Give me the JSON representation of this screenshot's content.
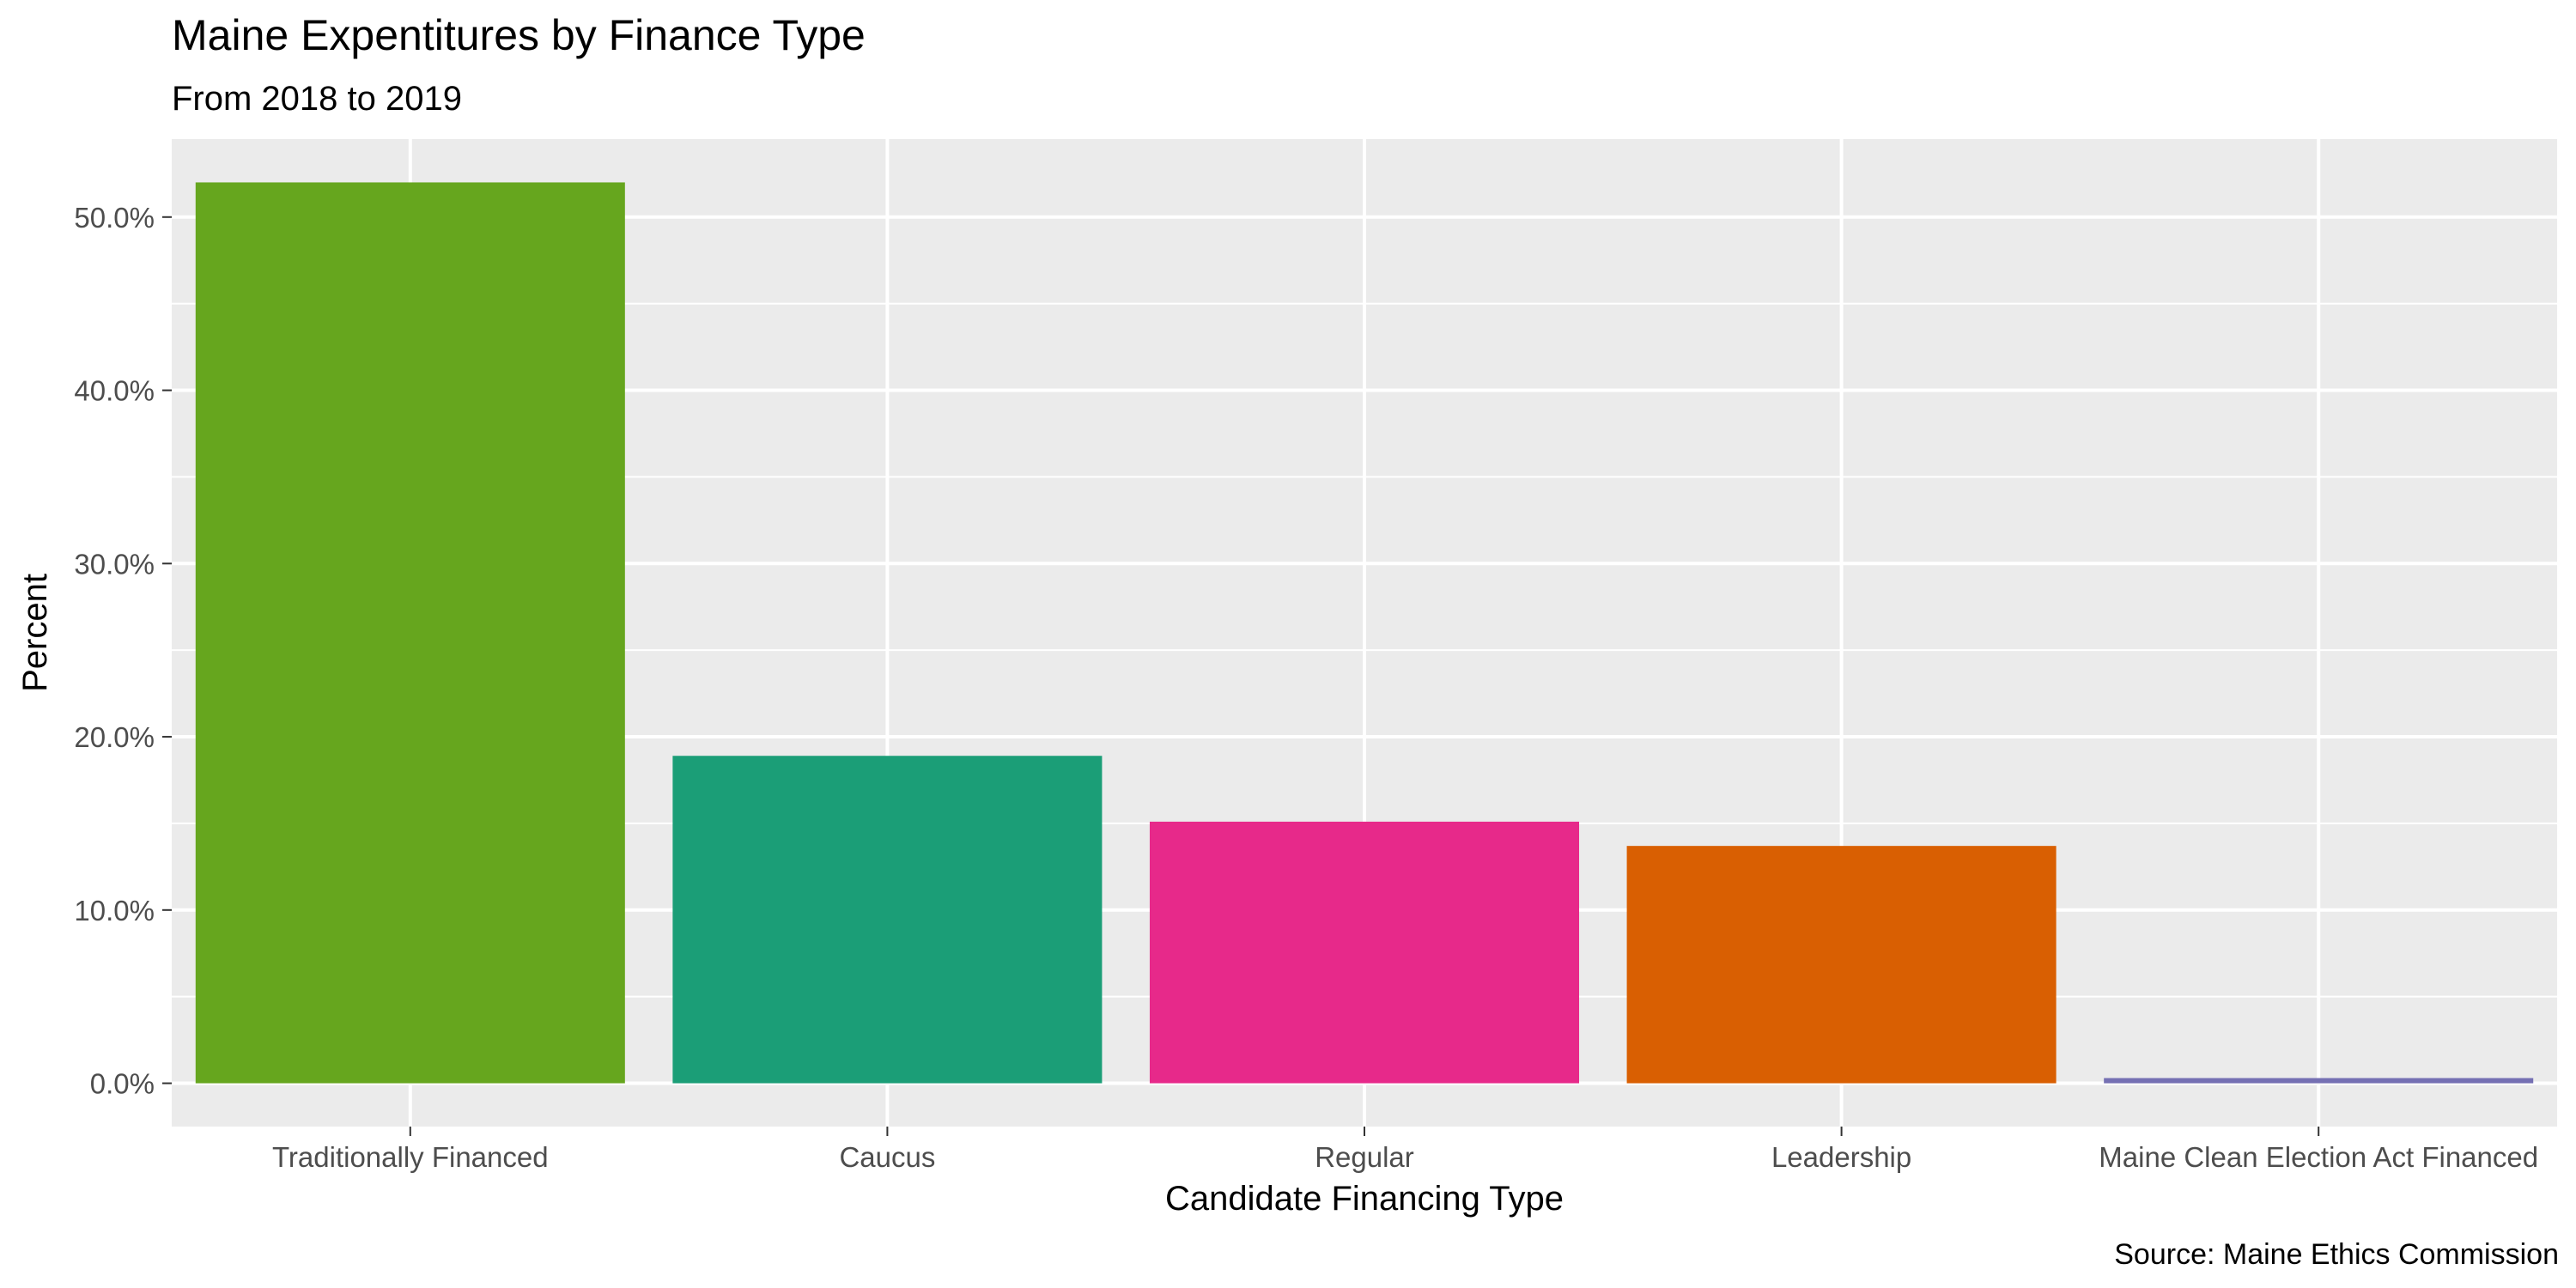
{
  "chart_data": {
    "type": "bar",
    "title": "Maine Expentitures by Finance Type",
    "subtitle": "From 2018 to 2019",
    "xlabel": "Candidate Financing Type",
    "ylabel": "Percent",
    "caption": "Source: Maine Ethics Commission",
    "categories": [
      "Traditionally Financed",
      "Caucus",
      "Regular",
      "Leadership",
      "Maine Clean Election Act Financed"
    ],
    "values": [
      52.0,
      18.9,
      15.1,
      13.7,
      0.3
    ],
    "colors": [
      "#66a61e",
      "#1b9e77",
      "#e7298a",
      "#d95f02",
      "#7570b3"
    ],
    "ylim": [
      -2.5,
      54.5
    ],
    "yticks": [
      0,
      10,
      20,
      30,
      40,
      50
    ],
    "ytick_labels": [
      "0.0%",
      "10.0%",
      "20.0%",
      "30.0%",
      "40.0%",
      "50.0%"
    ],
    "grid": true,
    "legend": "none",
    "panel_color": "#ebebeb"
  }
}
